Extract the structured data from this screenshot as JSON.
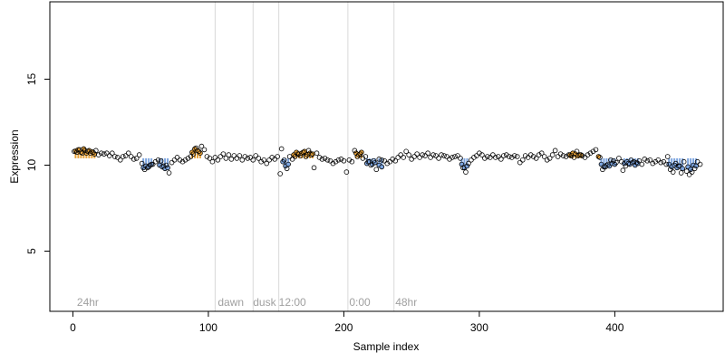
{
  "chart_data": {
    "type": "scatter",
    "title": "",
    "xlabel": "Sample index",
    "ylabel": "Expression",
    "xlim": [
      -17,
      480
    ],
    "ylim": [
      1.5,
      19.5
    ],
    "xticks": [
      0,
      100,
      200,
      300,
      400
    ],
    "yticks": [
      5,
      10,
      15
    ],
    "grid": false,
    "baseline": 10.4,
    "colors": {
      "above": "#E8A33A",
      "below": "#7EA6E0",
      "point_edge": "#000000",
      "divider": "#D9D9D9",
      "annotation": "#A0A0A0"
    },
    "dividers": [
      105,
      133,
      152,
      203,
      237
    ],
    "annotations": [
      {
        "x": 3,
        "text": "24hr"
      },
      {
        "x": 107,
        "text": "dawn"
      },
      {
        "x": 133,
        "text": "dusk"
      },
      {
        "x": 152,
        "text": "12:00"
      },
      {
        "x": 204,
        "text": "0:00"
      },
      {
        "x": 238,
        "text": "48hr"
      }
    ],
    "shaded_points": [
      {
        "x": 2,
        "y": 10.82,
        "fill": "#E8A33A"
      },
      {
        "x": 4,
        "y": 10.9,
        "fill": "#E8A33A"
      },
      {
        "x": 6,
        "y": 10.75,
        "fill": "#E8A33A"
      },
      {
        "x": 8,
        "y": 10.95,
        "fill": "#E8A33A"
      },
      {
        "x": 10,
        "y": 10.7,
        "fill": "#E8A33A"
      },
      {
        "x": 12,
        "y": 10.85,
        "fill": "#E8A33A"
      },
      {
        "x": 14,
        "y": 10.78,
        "fill": "#E8A33A"
      },
      {
        "x": 16,
        "y": 10.65,
        "fill": "#E8A33A"
      },
      {
        "x": 52,
        "y": 9.85,
        "fill": "#7EA6E0"
      },
      {
        "x": 54,
        "y": 9.95,
        "fill": "#7EA6E0"
      },
      {
        "x": 56,
        "y": 9.9,
        "fill": "#7EA6E0"
      },
      {
        "x": 58,
        "y": 10.05,
        "fill": "#7EA6E0"
      },
      {
        "x": 64,
        "y": 10.0,
        "fill": "#7EA6E0"
      },
      {
        "x": 66,
        "y": 9.9,
        "fill": "#7EA6E0"
      },
      {
        "x": 68,
        "y": 9.8,
        "fill": "#7EA6E0"
      },
      {
        "x": 70,
        "y": 9.85,
        "fill": "#7EA6E0"
      },
      {
        "x": 88,
        "y": 10.75,
        "fill": "#E8A33A"
      },
      {
        "x": 90,
        "y": 10.95,
        "fill": "#E8A33A"
      },
      {
        "x": 92,
        "y": 10.85,
        "fill": "#E8A33A"
      },
      {
        "x": 94,
        "y": 10.7,
        "fill": "#E8A33A"
      },
      {
        "x": 155,
        "y": 10.2,
        "fill": "#7EA6E0"
      },
      {
        "x": 157,
        "y": 9.95,
        "fill": "#7EA6E0"
      },
      {
        "x": 159,
        "y": 10.05,
        "fill": "#7EA6E0"
      },
      {
        "x": 163,
        "y": 10.6,
        "fill": "#E8A33A"
      },
      {
        "x": 165,
        "y": 10.75,
        "fill": "#E8A33A"
      },
      {
        "x": 167,
        "y": 10.65,
        "fill": "#E8A33A"
      },
      {
        "x": 169,
        "y": 10.7,
        "fill": "#E8A33A"
      },
      {
        "x": 171,
        "y": 10.8,
        "fill": "#E8A33A"
      },
      {
        "x": 173,
        "y": 10.6,
        "fill": "#E8A33A"
      },
      {
        "x": 175,
        "y": 10.7,
        "fill": "#E8A33A"
      },
      {
        "x": 177,
        "y": 10.65,
        "fill": "#E8A33A"
      },
      {
        "x": 209,
        "y": 10.7,
        "fill": "#E8A33A"
      },
      {
        "x": 211,
        "y": 10.6,
        "fill": "#E8A33A"
      },
      {
        "x": 213,
        "y": 10.75,
        "fill": "#E8A33A"
      },
      {
        "x": 217,
        "y": 10.1,
        "fill": "#7EA6E0"
      },
      {
        "x": 219,
        "y": 10.2,
        "fill": "#7EA6E0"
      },
      {
        "x": 221,
        "y": 10.05,
        "fill": "#7EA6E0"
      },
      {
        "x": 223,
        "y": 10.15,
        "fill": "#7EA6E0"
      },
      {
        "x": 226,
        "y": 10.0,
        "fill": "#7EA6E0"
      },
      {
        "x": 228,
        "y": 9.9,
        "fill": "#7EA6E0"
      },
      {
        "x": 287,
        "y": 10.05,
        "fill": "#7EA6E0"
      },
      {
        "x": 289,
        "y": 9.85,
        "fill": "#7EA6E0"
      },
      {
        "x": 291,
        "y": 9.95,
        "fill": "#7EA6E0"
      },
      {
        "x": 367,
        "y": 10.6,
        "fill": "#E8A33A"
      },
      {
        "x": 369,
        "y": 10.7,
        "fill": "#E8A33A"
      },
      {
        "x": 371,
        "y": 10.65,
        "fill": "#E8A33A"
      },
      {
        "x": 373,
        "y": 10.55,
        "fill": "#E8A33A"
      },
      {
        "x": 375,
        "y": 10.6,
        "fill": "#E8A33A"
      },
      {
        "x": 388,
        "y": 10.5,
        "fill": "#E8A33A"
      },
      {
        "x": 390,
        "y": 10.05,
        "fill": "#7EA6E0"
      },
      {
        "x": 392,
        "y": 9.9,
        "fill": "#7EA6E0"
      },
      {
        "x": 394,
        "y": 10.0,
        "fill": "#7EA6E0"
      },
      {
        "x": 396,
        "y": 9.95,
        "fill": "#7EA6E0"
      },
      {
        "x": 398,
        "y": 10.1,
        "fill": "#7EA6E0"
      },
      {
        "x": 400,
        "y": 10.05,
        "fill": "#7EA6E0"
      },
      {
        "x": 407,
        "y": 10.1,
        "fill": "#7EA6E0"
      },
      {
        "x": 409,
        "y": 10.2,
        "fill": "#7EA6E0"
      },
      {
        "x": 411,
        "y": 10.05,
        "fill": "#7EA6E0"
      },
      {
        "x": 413,
        "y": 10.15,
        "fill": "#7EA6E0"
      },
      {
        "x": 415,
        "y": 10.0,
        "fill": "#7EA6E0"
      },
      {
        "x": 417,
        "y": 10.1,
        "fill": "#7EA6E0"
      },
      {
        "x": 440,
        "y": 10.05,
        "fill": "#7EA6E0"
      },
      {
        "x": 442,
        "y": 9.9,
        "fill": "#7EA6E0"
      },
      {
        "x": 444,
        "y": 10.0,
        "fill": "#7EA6E0"
      },
      {
        "x": 446,
        "y": 9.85,
        "fill": "#7EA6E0"
      },
      {
        "x": 448,
        "y": 9.95,
        "fill": "#7EA6E0"
      },
      {
        "x": 450,
        "y": 9.8,
        "fill": "#7EA6E0"
      },
      {
        "x": 454,
        "y": 9.9,
        "fill": "#7EA6E0"
      },
      {
        "x": 456,
        "y": 9.75,
        "fill": "#7EA6E0"
      },
      {
        "x": 458,
        "y": 10.0,
        "fill": "#7EA6E0"
      },
      {
        "x": 460,
        "y": 9.95,
        "fill": "#7EA6E0"
      }
    ],
    "points": [
      [
        1,
        10.8
      ],
      [
        3,
        10.75
      ],
      [
        5,
        10.9
      ],
      [
        7,
        10.7
      ],
      [
        9,
        10.85
      ],
      [
        11,
        10.8
      ],
      [
        13,
        10.7
      ],
      [
        15,
        10.75
      ],
      [
        17,
        10.85
      ],
      [
        19,
        10.6
      ],
      [
        21,
        10.7
      ],
      [
        23,
        10.65
      ],
      [
        25,
        10.7
      ],
      [
        27,
        10.55
      ],
      [
        29,
        10.7
      ],
      [
        31,
        10.5
      ],
      [
        33,
        10.45
      ],
      [
        35,
        10.3
      ],
      [
        37,
        10.5
      ],
      [
        39,
        10.55
      ],
      [
        41,
        10.7
      ],
      [
        43,
        10.5
      ],
      [
        45,
        10.35
      ],
      [
        47,
        10.4
      ],
      [
        49,
        10.6
      ],
      [
        51,
        10.1
      ],
      [
        53,
        9.75
      ],
      [
        55,
        9.85
      ],
      [
        57,
        10.0
      ],
      [
        59,
        10.05
      ],
      [
        61,
        10.2
      ],
      [
        63,
        10.3
      ],
      [
        65,
        10.25
      ],
      [
        67,
        9.95
      ],
      [
        69,
        10.0
      ],
      [
        71,
        9.55
      ],
      [
        73,
        10.15
      ],
      [
        75,
        10.3
      ],
      [
        77,
        10.45
      ],
      [
        79,
        10.3
      ],
      [
        81,
        10.2
      ],
      [
        83,
        10.3
      ],
      [
        85,
        10.4
      ],
      [
        87,
        10.5
      ],
      [
        89,
        10.65
      ],
      [
        91,
        11.0
      ],
      [
        93,
        10.8
      ],
      [
        95,
        11.1
      ],
      [
        97,
        10.9
      ],
      [
        99,
        10.5
      ],
      [
        101,
        10.4
      ],
      [
        103,
        10.2
      ],
      [
        105,
        10.45
      ],
      [
        107,
        10.3
      ],
      [
        109,
        10.5
      ],
      [
        111,
        10.65
      ],
      [
        113,
        10.4
      ],
      [
        115,
        10.6
      ],
      [
        117,
        10.35
      ],
      [
        119,
        10.55
      ],
      [
        121,
        10.4
      ],
      [
        123,
        10.55
      ],
      [
        125,
        10.3
      ],
      [
        127,
        10.5
      ],
      [
        129,
        10.4
      ],
      [
        131,
        10.45
      ],
      [
        133,
        10.3
      ],
      [
        135,
        10.55
      ],
      [
        137,
        10.4
      ],
      [
        139,
        10.2
      ],
      [
        141,
        10.3
      ],
      [
        143,
        10.1
      ],
      [
        145,
        10.3
      ],
      [
        147,
        10.45
      ],
      [
        149,
        10.35
      ],
      [
        151,
        10.5
      ],
      [
        153,
        9.5
      ],
      [
        154,
        10.95
      ],
      [
        156,
        10.3
      ],
      [
        158,
        9.8
      ],
      [
        160,
        10.5
      ],
      [
        162,
        10.35
      ],
      [
        164,
        10.5
      ],
      [
        166,
        10.65
      ],
      [
        168,
        10.55
      ],
      [
        170,
        10.75
      ],
      [
        172,
        10.5
      ],
      [
        174,
        10.85
      ],
      [
        176,
        10.6
      ],
      [
        178,
        9.85
      ],
      [
        180,
        10.7
      ],
      [
        182,
        10.45
      ],
      [
        184,
        10.35
      ],
      [
        186,
        10.4
      ],
      [
        188,
        10.3
      ],
      [
        190,
        10.25
      ],
      [
        192,
        10.1
      ],
      [
        194,
        10.2
      ],
      [
        196,
        10.3
      ],
      [
        198,
        10.35
      ],
      [
        200,
        10.25
      ],
      [
        202,
        9.6
      ],
      [
        204,
        10.3
      ],
      [
        206,
        10.2
      ],
      [
        208,
        10.85
      ],
      [
        210,
        10.5
      ],
      [
        212,
        10.65
      ],
      [
        214,
        10.4
      ],
      [
        216,
        10.5
      ],
      [
        218,
        10.2
      ],
      [
        220,
        10.0
      ],
      [
        222,
        10.25
      ],
      [
        224,
        9.75
      ],
      [
        226,
        10.35
      ],
      [
        228,
        10.3
      ],
      [
        230,
        10.25
      ],
      [
        232,
        10.1
      ],
      [
        234,
        10.2
      ],
      [
        236,
        10.35
      ],
      [
        238,
        10.25
      ],
      [
        240,
        10.45
      ],
      [
        242,
        10.6
      ],
      [
        244,
        10.45
      ],
      [
        246,
        10.8
      ],
      [
        248,
        10.6
      ],
      [
        250,
        10.35
      ],
      [
        252,
        10.5
      ],
      [
        254,
        10.65
      ],
      [
        256,
        10.45
      ],
      [
        258,
        10.6
      ],
      [
        260,
        10.55
      ],
      [
        262,
        10.7
      ],
      [
        264,
        10.45
      ],
      [
        266,
        10.6
      ],
      [
        268,
        10.55
      ],
      [
        270,
        10.4
      ],
      [
        272,
        10.6
      ],
      [
        274,
        10.55
      ],
      [
        276,
        10.5
      ],
      [
        278,
        10.35
      ],
      [
        280,
        10.45
      ],
      [
        282,
        10.5
      ],
      [
        284,
        10.55
      ],
      [
        286,
        10.4
      ],
      [
        288,
        9.85
      ],
      [
        290,
        9.6
      ],
      [
        292,
        10.1
      ],
      [
        294,
        10.3
      ],
      [
        296,
        10.45
      ],
      [
        298,
        10.55
      ],
      [
        300,
        10.7
      ],
      [
        302,
        10.6
      ],
      [
        304,
        10.4
      ],
      [
        306,
        10.5
      ],
      [
        308,
        10.45
      ],
      [
        310,
        10.6
      ],
      [
        312,
        10.45
      ],
      [
        314,
        10.5
      ],
      [
        316,
        10.35
      ],
      [
        318,
        10.55
      ],
      [
        320,
        10.6
      ],
      [
        322,
        10.5
      ],
      [
        324,
        10.45
      ],
      [
        326,
        10.55
      ],
      [
        328,
        10.5
      ],
      [
        330,
        10.15
      ],
      [
        332,
        10.3
      ],
      [
        334,
        10.55
      ],
      [
        336,
        10.45
      ],
      [
        338,
        10.6
      ],
      [
        340,
        10.5
      ],
      [
        342,
        10.4
      ],
      [
        344,
        10.6
      ],
      [
        346,
        10.7
      ],
      [
        348,
        10.5
      ],
      [
        350,
        10.3
      ],
      [
        352,
        10.4
      ],
      [
        354,
        10.6
      ],
      [
        356,
        10.85
      ],
      [
        358,
        10.5
      ],
      [
        360,
        10.65
      ],
      [
        362,
        10.55
      ],
      [
        364,
        10.5
      ],
      [
        366,
        10.6
      ],
      [
        368,
        10.55
      ],
      [
        370,
        10.45
      ],
      [
        372,
        10.8
      ],
      [
        374,
        10.6
      ],
      [
        376,
        10.55
      ],
      [
        378,
        10.45
      ],
      [
        380,
        10.6
      ],
      [
        382,
        10.7
      ],
      [
        384,
        10.8
      ],
      [
        386,
        10.9
      ],
      [
        389,
        10.45
      ],
      [
        391,
        9.75
      ],
      [
        393,
        9.9
      ],
      [
        395,
        10.05
      ],
      [
        397,
        10.3
      ],
      [
        399,
        10.25
      ],
      [
        401,
        10.15
      ],
      [
        403,
        10.4
      ],
      [
        405,
        10.2
      ],
      [
        406,
        9.7
      ],
      [
        408,
        9.95
      ],
      [
        410,
        10.1
      ],
      [
        412,
        10.3
      ],
      [
        414,
        10.2
      ],
      [
        416,
        10.15
      ],
      [
        418,
        10.25
      ],
      [
        420,
        10.05
      ],
      [
        422,
        10.35
      ],
      [
        424,
        10.25
      ],
      [
        426,
        10.3
      ],
      [
        428,
        10.1
      ],
      [
        430,
        10.2
      ],
      [
        432,
        10.3
      ],
      [
        434,
        10.15
      ],
      [
        436,
        10.2
      ],
      [
        438,
        10.05
      ],
      [
        439,
        10.5
      ],
      [
        441,
        9.75
      ],
      [
        443,
        9.6
      ],
      [
        445,
        10.1
      ],
      [
        447,
        9.95
      ],
      [
        449,
        9.55
      ],
      [
        451,
        10.2
      ],
      [
        453,
        9.65
      ],
      [
        455,
        9.45
      ],
      [
        457,
        9.6
      ],
      [
        459,
        9.8
      ],
      [
        461,
        10.2
      ],
      [
        463,
        10.05
      ]
    ]
  }
}
